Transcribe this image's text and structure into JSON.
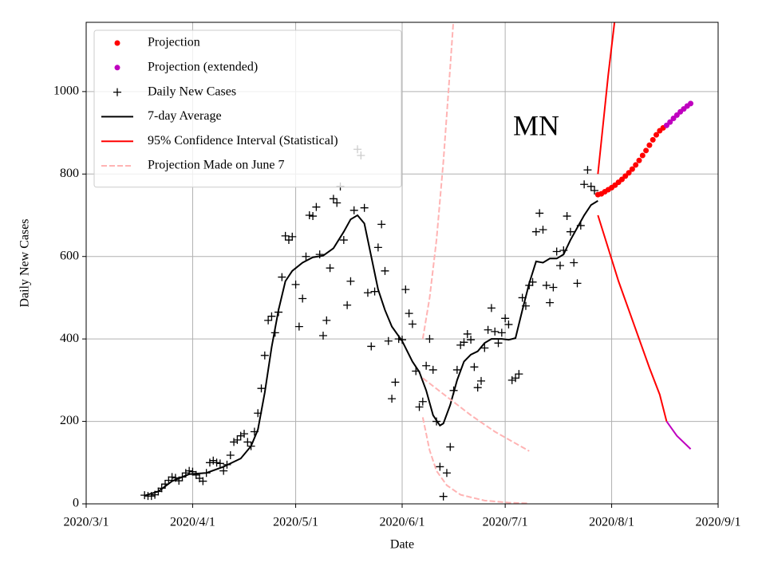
{
  "chart_data": {
    "type": "line",
    "annotation": "MN",
    "xlabel": "Date",
    "ylabel": "Daily New Cases",
    "xlim": [
      "2020-03-01",
      "2020-09-01"
    ],
    "xticks": [
      {
        "value": "2020-03-01",
        "label": "2020/3/1"
      },
      {
        "value": "2020-04-01",
        "label": "2020/4/1"
      },
      {
        "value": "2020-05-01",
        "label": "2020/5/1"
      },
      {
        "value": "2020-06-01",
        "label": "2020/6/1"
      },
      {
        "value": "2020-07-01",
        "label": "2020/7/1"
      },
      {
        "value": "2020-08-01",
        "label": "2020/8/1"
      },
      {
        "value": "2020-09-01",
        "label": "2020/9/1"
      }
    ],
    "ylim": [
      0,
      1168
    ],
    "yticks": [
      0,
      200,
      400,
      600,
      800,
      1000
    ],
    "grid": true,
    "legend": "upper left",
    "series": [
      {
        "name": "Projection",
        "kind": "dots",
        "color": "#ff0000",
        "x": [
          "2020-07-28",
          "2020-07-29",
          "2020-07-30",
          "2020-07-31",
          "2020-08-01",
          "2020-08-02",
          "2020-08-03",
          "2020-08-04",
          "2020-08-05",
          "2020-08-06",
          "2020-08-07",
          "2020-08-08",
          "2020-08-09",
          "2020-08-10",
          "2020-08-11",
          "2020-08-12",
          "2020-08-13",
          "2020-08-14",
          "2020-08-15",
          "2020-08-16"
        ],
        "values": [
          750,
          752,
          757,
          762,
          767,
          773,
          780,
          787,
          795,
          803,
          812,
          822,
          833,
          845,
          857,
          870,
          883,
          895,
          905,
          912
        ]
      },
      {
        "name": "Projection (extended)",
        "kind": "dots",
        "color": "#bf00bf",
        "x": [
          "2020-08-17",
          "2020-08-18",
          "2020-08-19",
          "2020-08-20",
          "2020-08-21",
          "2020-08-22",
          "2020-08-23",
          "2020-08-24"
        ],
        "values": [
          918,
          926,
          935,
          943,
          951,
          958,
          965,
          971
        ]
      },
      {
        "name": "Daily New Cases",
        "kind": "plus",
        "color": "#000000",
        "x": [
          "2020-03-18",
          "2020-03-19",
          "2020-03-20",
          "2020-03-21",
          "2020-03-22",
          "2020-03-23",
          "2020-03-24",
          "2020-03-25",
          "2020-03-26",
          "2020-03-27",
          "2020-03-28",
          "2020-03-29",
          "2020-03-30",
          "2020-03-31",
          "2020-04-01",
          "2020-04-02",
          "2020-04-03",
          "2020-04-04",
          "2020-04-05",
          "2020-04-06",
          "2020-04-07",
          "2020-04-08",
          "2020-04-09",
          "2020-04-10",
          "2020-04-11",
          "2020-04-12",
          "2020-04-13",
          "2020-04-14",
          "2020-04-15",
          "2020-04-16",
          "2020-04-17",
          "2020-04-18",
          "2020-04-19",
          "2020-04-20",
          "2020-04-21",
          "2020-04-22",
          "2020-04-23",
          "2020-04-24",
          "2020-04-25",
          "2020-04-26",
          "2020-04-27",
          "2020-04-28",
          "2020-04-29",
          "2020-04-30",
          "2020-05-01",
          "2020-05-02",
          "2020-05-03",
          "2020-05-04",
          "2020-05-05",
          "2020-05-06",
          "2020-05-07",
          "2020-05-08",
          "2020-05-09",
          "2020-05-10",
          "2020-05-11",
          "2020-05-12",
          "2020-05-13",
          "2020-05-14",
          "2020-05-15",
          "2020-05-16",
          "2020-05-17",
          "2020-05-18",
          "2020-05-19",
          "2020-05-20",
          "2020-05-21",
          "2020-05-22",
          "2020-05-23",
          "2020-05-24",
          "2020-05-25",
          "2020-05-26",
          "2020-05-27",
          "2020-05-28",
          "2020-05-29",
          "2020-05-30",
          "2020-05-31",
          "2020-06-01",
          "2020-06-02",
          "2020-06-03",
          "2020-06-04",
          "2020-06-05",
          "2020-06-06",
          "2020-06-07",
          "2020-06-08",
          "2020-06-09",
          "2020-06-10",
          "2020-06-11",
          "2020-06-12",
          "2020-06-13",
          "2020-06-14",
          "2020-06-15",
          "2020-06-16",
          "2020-06-17",
          "2020-06-18",
          "2020-06-19",
          "2020-06-20",
          "2020-06-21",
          "2020-06-22",
          "2020-06-23",
          "2020-06-24",
          "2020-06-25",
          "2020-06-26",
          "2020-06-27",
          "2020-06-28",
          "2020-06-29",
          "2020-06-30",
          "2020-07-01",
          "2020-07-02",
          "2020-07-03",
          "2020-07-04",
          "2020-07-05",
          "2020-07-06",
          "2020-07-07",
          "2020-07-08",
          "2020-07-09",
          "2020-07-10",
          "2020-07-11",
          "2020-07-12",
          "2020-07-13",
          "2020-07-14",
          "2020-07-15",
          "2020-07-16",
          "2020-07-17",
          "2020-07-18",
          "2020-07-19",
          "2020-07-20",
          "2020-07-21",
          "2020-07-22",
          "2020-07-23",
          "2020-07-24",
          "2020-07-25",
          "2020-07-26",
          "2020-07-27"
        ],
        "values": [
          21,
          19,
          19,
          22,
          30,
          38,
          48,
          57,
          65,
          63,
          56,
          65,
          75,
          80,
          78,
          70,
          62,
          55,
          75,
          100,
          105,
          100,
          98,
          80,
          95,
          118,
          150,
          155,
          165,
          170,
          150,
          140,
          175,
          220,
          280,
          360,
          445,
          455,
          415,
          465,
          550,
          650,
          640,
          648,
          532,
          430,
          498,
          600,
          700,
          698,
          720,
          605,
          408,
          445,
          572,
          740,
          730,
          770,
          640,
          482,
          540,
          712,
          860,
          845,
          718,
          512,
          382,
          515,
          622,
          678,
          565,
          395,
          255,
          295,
          400,
          398,
          520,
          462,
          436,
          322,
          235,
          248,
          335,
          400,
          325,
          200,
          90,
          18,
          75,
          138,
          275,
          325,
          385,
          392,
          412,
          398,
          332,
          282,
          298,
          378,
          422,
          475,
          418,
          390,
          415,
          450,
          435,
          300,
          305,
          315,
          500,
          480,
          530,
          538,
          660,
          705,
          665,
          530,
          488,
          525,
          612,
          578,
          615,
          698,
          660,
          585,
          535,
          675,
          775,
          810,
          770,
          760
        ]
      },
      {
        "name": "7-day Average",
        "kind": "line",
        "color": "#000000",
        "segments": [
          {
            "x": [
              "2020-03-18",
              "2020-03-22",
              "2020-03-26",
              "2020-03-31",
              "2020-04-05",
              "2020-04-10",
              "2020-04-15",
              "2020-04-18",
              "2020-04-20",
              "2020-04-22",
              "2020-04-24",
              "2020-04-26",
              "2020-04-28",
              "2020-04-30",
              "2020-05-03",
              "2020-05-06",
              "2020-05-09",
              "2020-05-12",
              "2020-05-15",
              "2020-05-17",
              "2020-05-19",
              "2020-05-21",
              "2020-05-23",
              "2020-05-25",
              "2020-05-27",
              "2020-05-29",
              "2020-06-01",
              "2020-06-04",
              "2020-06-06",
              "2020-06-08",
              "2020-06-10",
              "2020-06-12",
              "2020-06-13",
              "2020-06-15",
              "2020-06-17",
              "2020-06-19",
              "2020-06-21",
              "2020-06-23",
              "2020-06-25",
              "2020-06-27",
              "2020-06-30",
              "2020-07-02",
              "2020-07-04",
              "2020-07-06",
              "2020-07-08",
              "2020-07-10",
              "2020-07-12",
              "2020-07-14",
              "2020-07-16",
              "2020-07-18",
              "2020-07-20",
              "2020-07-22",
              "2020-07-24",
              "2020-07-26",
              "2020-07-28"
            ],
            "values": [
              20,
              30,
              55,
              72,
              75,
              90,
              110,
              140,
              180,
              270,
              380,
              470,
              540,
              565,
              585,
              598,
              602,
              620,
              660,
              690,
              700,
              680,
              600,
              520,
              470,
              430,
              395,
              345,
              320,
              275,
              215,
              190,
              195,
              240,
              300,
              345,
              362,
              370,
              390,
              400,
              400,
              398,
              402,
              470,
              535,
              588,
              585,
              595,
              595,
              605,
              640,
              670,
              700,
              725,
              735
            ]
          }
        ]
      },
      {
        "name": "95% Confidence Interval (Statistical)",
        "kind": "line",
        "color": "#ff0000",
        "segments": [
          {
            "x": [
              "2020-07-28",
              "2020-07-29",
              "2020-07-30",
              "2020-07-31",
              "2020-08-01",
              "2020-08-02"
            ],
            "values": [
              800,
              880,
              960,
              1040,
              1110,
              1180
            ]
          },
          {
            "x": [
              "2020-07-28",
              "2020-07-31",
              "2020-08-03",
              "2020-08-06",
              "2020-08-09",
              "2020-08-12",
              "2020-08-15",
              "2020-08-17"
            ],
            "values": [
              700,
              620,
              540,
              470,
              400,
              330,
              265,
              200
            ]
          }
        ]
      },
      {
        "kind": "line",
        "color": "#bf00bf",
        "segments": [
          {
            "x": [
              "2020-08-17",
              "2020-08-20",
              "2020-08-24"
            ],
            "values": [
              200,
              165,
              133
            ]
          }
        ]
      },
      {
        "name": "Projection Made on June 7",
        "kind": "line",
        "color": "#ffb3b3",
        "dashed": true,
        "segments": [
          {
            "x": [
              "2020-06-07",
              "2020-06-09",
              "2020-06-11",
              "2020-06-13",
              "2020-06-15",
              "2020-06-17"
            ],
            "values": [
              400,
              500,
              640,
              830,
              1060,
              1300
            ]
          },
          {
            "x": [
              "2020-06-07",
              "2020-06-14",
              "2020-06-21",
              "2020-06-28",
              "2020-07-08"
            ],
            "values": [
              305,
              260,
              215,
              175,
              128
            ]
          },
          {
            "x": [
              "2020-06-07",
              "2020-06-09",
              "2020-06-11",
              "2020-06-14",
              "2020-06-18",
              "2020-06-25",
              "2020-07-02",
              "2020-07-08"
            ],
            "values": [
              210,
              130,
              80,
              45,
              22,
              8,
              3,
              1
            ]
          }
        ]
      }
    ]
  }
}
